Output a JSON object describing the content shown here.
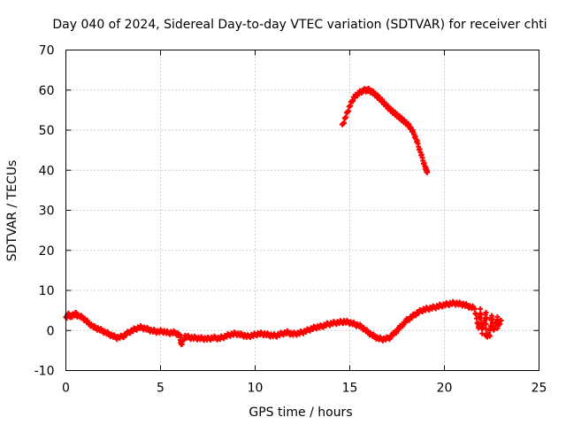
{
  "chart_data": {
    "type": "scatter",
    "title": "Day 040 of 2024, Sidereal Day-to-day VTEC variation (SDTVAR) for receiver chti",
    "xlabel": "GPS time / hours",
    "ylabel": "SDTVAR / TECUs",
    "xlim": [
      0,
      25
    ],
    "ylim": [
      -10,
      70
    ],
    "xticks": [
      "0",
      "5",
      "10",
      "15",
      "20",
      "25"
    ],
    "yticks": [
      "-10",
      "0",
      "10",
      "20",
      "30",
      "40",
      "50",
      "60",
      "70"
    ],
    "grid": true,
    "marker": "plus",
    "series": [
      {
        "name": "SDTVAR (near zero)",
        "color": "#ff0000",
        "points": [
          [
            0.0,
            3.0
          ],
          [
            0.3,
            3.5
          ],
          [
            0.6,
            3.8
          ],
          [
            0.9,
            3.2
          ],
          [
            1.2,
            1.8
          ],
          [
            1.5,
            0.8
          ],
          [
            1.8,
            0.2
          ],
          [
            2.1,
            -0.5
          ],
          [
            2.4,
            -1.2
          ],
          [
            2.7,
            -1.8
          ],
          [
            3.0,
            -1.5
          ],
          [
            3.3,
            -0.5
          ],
          [
            3.6,
            0.2
          ],
          [
            3.9,
            0.8
          ],
          [
            4.2,
            0.5
          ],
          [
            4.5,
            0.0
          ],
          [
            4.8,
            -0.3
          ],
          [
            5.1,
            -0.2
          ],
          [
            5.4,
            -0.6
          ],
          [
            5.7,
            -0.5
          ],
          [
            6.0,
            -1.0
          ],
          [
            6.3,
            -1.5
          ],
          [
            6.6,
            -1.8
          ],
          [
            6.9,
            -1.9
          ],
          [
            7.2,
            -2.0
          ],
          [
            7.5,
            -2.1
          ],
          [
            7.8,
            -1.8
          ],
          [
            8.1,
            -2.0
          ],
          [
            8.4,
            -1.5
          ],
          [
            8.7,
            -1.0
          ],
          [
            9.0,
            -0.8
          ],
          [
            9.3,
            -1.1
          ],
          [
            9.6,
            -1.5
          ],
          [
            9.9,
            -1.2
          ],
          [
            10.2,
            -0.8
          ],
          [
            10.5,
            -0.9
          ],
          [
            10.8,
            -1.2
          ],
          [
            11.1,
            -1.3
          ],
          [
            11.4,
            -0.8
          ],
          [
            11.7,
            -0.5
          ],
          [
            12.0,
            -0.9
          ],
          [
            12.3,
            -0.7
          ],
          [
            12.6,
            -0.3
          ],
          [
            12.9,
            0.3
          ],
          [
            13.2,
            0.8
          ],
          [
            13.5,
            1.0
          ],
          [
            13.8,
            1.5
          ],
          [
            14.1,
            1.8
          ],
          [
            14.4,
            2.0
          ],
          [
            14.7,
            2.2
          ],
          [
            15.0,
            2.0
          ],
          [
            15.3,
            1.5
          ],
          [
            15.6,
            1.0
          ],
          [
            15.9,
            -0.2
          ],
          [
            16.2,
            -1.2
          ],
          [
            16.5,
            -2.0
          ],
          [
            16.8,
            -2.2
          ],
          [
            17.1,
            -1.8
          ],
          [
            17.4,
            -0.5
          ],
          [
            17.7,
            1.0
          ],
          [
            18.0,
            2.5
          ],
          [
            18.3,
            3.5
          ],
          [
            18.6,
            4.5
          ],
          [
            18.9,
            5.2
          ],
          [
            19.2,
            5.5
          ],
          [
            19.5,
            5.8
          ],
          [
            19.8,
            6.2
          ],
          [
            20.1,
            6.5
          ],
          [
            20.4,
            6.8
          ],
          [
            20.7,
            6.7
          ],
          [
            21.0,
            6.5
          ],
          [
            21.3,
            6.0
          ],
          [
            21.6,
            5.5
          ],
          [
            21.9,
            5.0
          ],
          [
            22.2,
            4.5
          ],
          [
            22.5,
            3.8
          ],
          [
            22.8,
            3.0
          ],
          [
            23.0,
            2.5
          ],
          [
            21.8,
            0.5
          ],
          [
            22.0,
            -0.5
          ],
          [
            22.2,
            -1.5
          ],
          [
            22.4,
            -1.0
          ],
          [
            22.6,
            0.0
          ],
          [
            22.8,
            0.8
          ],
          [
            6.1,
            -3.5
          ],
          [
            0.1,
            4.0
          ],
          [
            0.5,
            4.2
          ]
        ]
      },
      {
        "name": "SDTVAR (high arc)",
        "color": "#ff0000",
        "points": [
          [
            14.6,
            51.0
          ],
          [
            14.8,
            53.5
          ],
          [
            15.0,
            56.0
          ],
          [
            15.2,
            58.0
          ],
          [
            15.4,
            59.0
          ],
          [
            15.6,
            59.6
          ],
          [
            15.8,
            60.0
          ],
          [
            16.0,
            60.0
          ],
          [
            16.2,
            59.5
          ],
          [
            16.4,
            58.7
          ],
          [
            16.6,
            57.8
          ],
          [
            16.8,
            56.8
          ],
          [
            17.0,
            55.8
          ],
          [
            17.2,
            54.9
          ],
          [
            17.4,
            54.1
          ],
          [
            17.6,
            53.3
          ],
          [
            17.8,
            52.5
          ],
          [
            18.0,
            51.7
          ],
          [
            18.2,
            50.7
          ],
          [
            18.4,
            49.0
          ],
          [
            18.6,
            46.5
          ],
          [
            18.8,
            43.5
          ],
          [
            19.0,
            40.5
          ],
          [
            19.1,
            39.5
          ]
        ]
      }
    ]
  }
}
